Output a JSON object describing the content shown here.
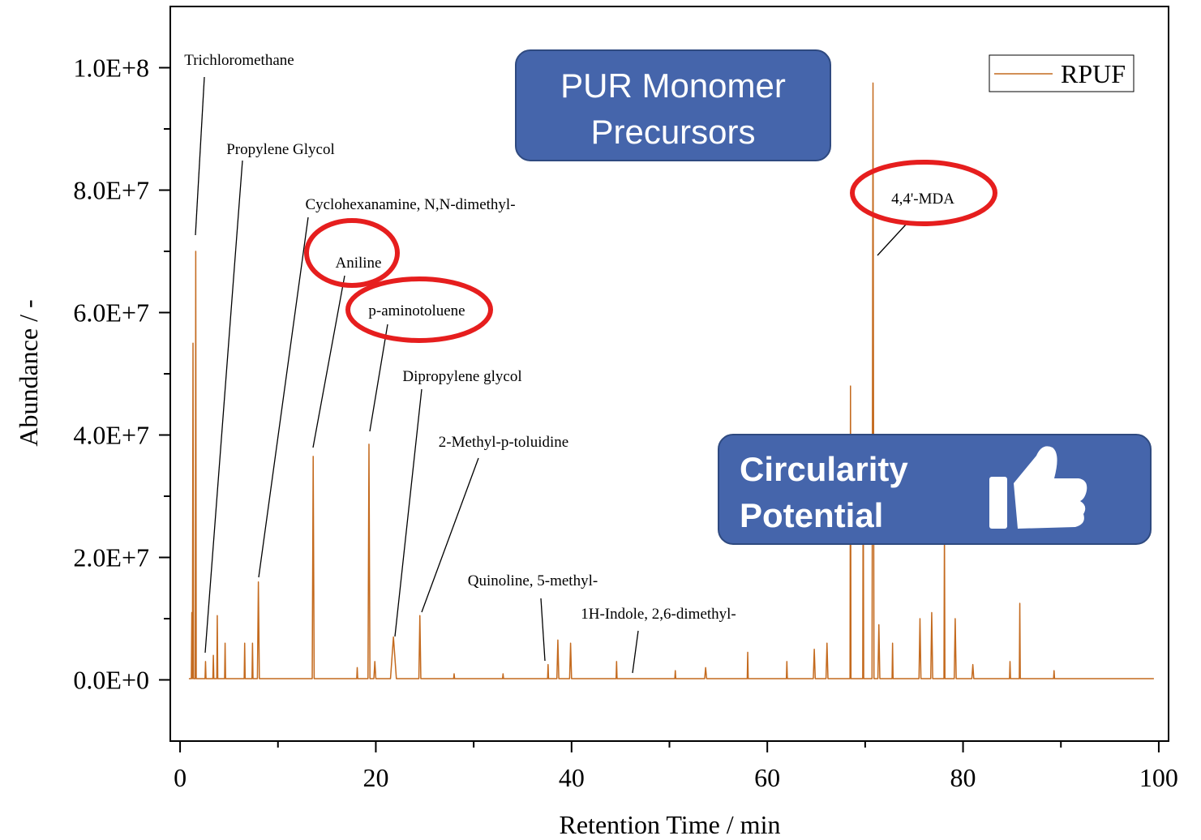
{
  "chart_data": {
    "type": "line",
    "xlabel": "Retention Time / min",
    "ylabel": "Abundance / -",
    "xlim": [
      -1,
      101
    ],
    "ylim": [
      -10000000,
      110000000
    ],
    "xticks": [
      0,
      20,
      40,
      60,
      80,
      100
    ],
    "yticks": [
      {
        "value": 0,
        "label": "0.0E+0"
      },
      {
        "value": 20000000,
        "label": "2.0E+7"
      },
      {
        "value": 40000000,
        "label": "4.0E+7"
      },
      {
        "value": 60000000,
        "label": "6.0E+7"
      },
      {
        "value": 80000000,
        "label": "8.0E+7"
      },
      {
        "value": 100000000,
        "label": "1.0E+8"
      }
    ],
    "legend": "upper right",
    "x": [
      0.9,
      1.15,
      1.2,
      1.26,
      1.32,
      1.38,
      1.55,
      1.6,
      1.65,
      2.55,
      2.6,
      2.65,
      3.35,
      3.4,
      3.45,
      3.75,
      3.8,
      3.85,
      4.55,
      4.6,
      4.65,
      6.55,
      6.6,
      6.65,
      7.35,
      7.4,
      7.45,
      7.9,
      8.0,
      8.1,
      13.5,
      13.6,
      13.7,
      18.05,
      18.1,
      18.15,
      19.2,
      19.3,
      19.4,
      19.8,
      19.9,
      20.0,
      21.5,
      21.8,
      22.1,
      24.4,
      24.5,
      24.6,
      27.95,
      28,
      28.05,
      32.95,
      33,
      33.05,
      37.55,
      37.6,
      37.65,
      38.5,
      38.6,
      38.7,
      39.8,
      39.9,
      40.0,
      44.55,
      44.6,
      44.65,
      50.55,
      50.6,
      50.65,
      53.6,
      53.7,
      53.8,
      57.95,
      58,
      58.05,
      61.95,
      62,
      62.05,
      64.7,
      64.8,
      64.9,
      66.0,
      66.1,
      66.2,
      68.45,
      68.5,
      68.55,
      69.75,
      69.8,
      69.85,
      70.7,
      70.8,
      70.9,
      71.3,
      71.4,
      71.5,
      72.75,
      72.8,
      72.85,
      75.5,
      75.6,
      75.7,
      76.7,
      76.8,
      76.9,
      78.05,
      78.1,
      78.15,
      79.1,
      79.2,
      79.3,
      80.9,
      81,
      81.1,
      84.75,
      84.8,
      84.85,
      85.75,
      85.8,
      85.85,
      89.25,
      89.3,
      89.35,
      99.5
    ],
    "series": [
      {
        "name": "RPUF",
        "color": "#c46a1e",
        "values": [
          200000,
          200000,
          11000000,
          200000,
          55000000,
          200000,
          200000,
          70000000,
          200000,
          200000,
          3000000,
          200000,
          200000,
          4000000,
          200000,
          200000,
          10500000,
          200000,
          200000,
          6000000,
          200000,
          200000,
          6000000,
          200000,
          200000,
          6000000,
          200000,
          200000,
          16000000,
          200000,
          200000,
          36500000,
          200000,
          200000,
          2000000,
          200000,
          200000,
          38500000,
          200000,
          200000,
          3000000,
          200000,
          200000,
          7000000,
          200000,
          200000,
          10500000,
          200000,
          200000,
          1000000,
          200000,
          200000,
          1000000,
          200000,
          200000,
          2500000,
          200000,
          200000,
          6500000,
          200000,
          200000,
          6000000,
          200000,
          200000,
          3000000,
          200000,
          200000,
          1500000,
          200000,
          200000,
          2000000,
          200000,
          200000,
          4500000,
          200000,
          200000,
          3000000,
          200000,
          200000,
          5000000,
          200000,
          200000,
          6000000,
          200000,
          200000,
          48000000,
          200000,
          200000,
          37000000,
          200000,
          200000,
          97500000,
          200000,
          200000,
          9000000,
          200000,
          200000,
          6000000,
          200000,
          200000,
          10000000,
          200000,
          200000,
          11000000,
          200000,
          200000,
          25000000,
          200000,
          200000,
          10000000,
          200000,
          200000,
          2500000,
          200000,
          200000,
          3000000,
          200000,
          200000,
          12500000,
          200000,
          200000,
          1500000,
          200000,
          200000
        ]
      }
    ],
    "annotations": [
      "Trichloromethane",
      "Propylene Glycol",
      "Cyclohexanamine, N,N-dimethyl-",
      "Aniline",
      "p-aminotoluene",
      "Dipropylene glycol",
      "2-Methyl-p-toluidine",
      "Quinoline, 5-methyl-",
      "1H-Indole, 2,6-dimethyl-",
      "4,4'-MDA"
    ],
    "boxes": [
      {
        "lines": [
          "PUR Monomer",
          "Precursors"
        ]
      },
      {
        "lines": [
          "Circularity",
          "Potential"
        ]
      }
    ]
  }
}
